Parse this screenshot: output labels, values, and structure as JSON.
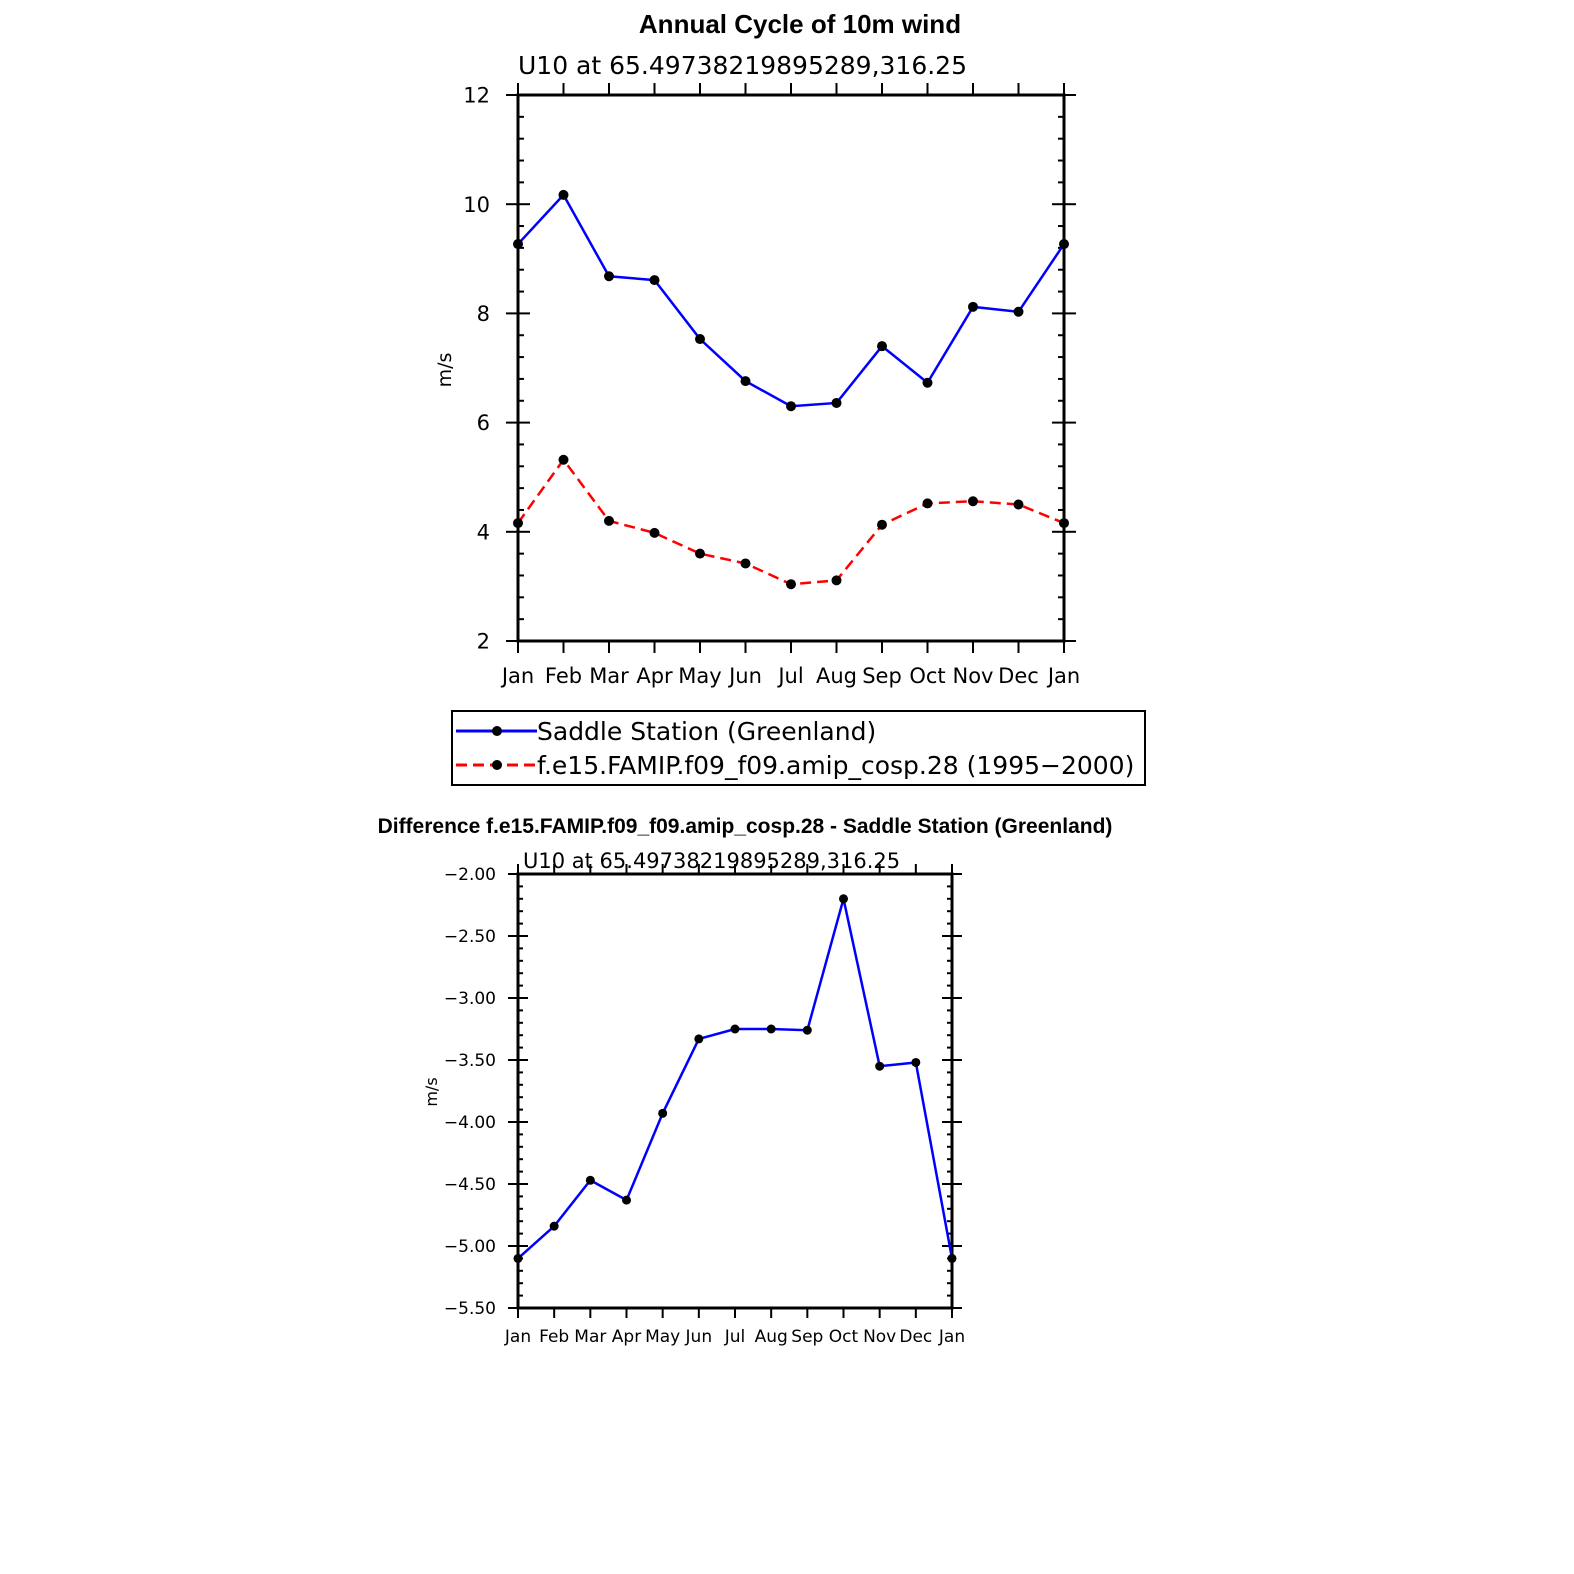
{
  "chart_data": [
    {
      "type": "line",
      "title": "Annual Cycle of 10m wind",
      "subtitle": "U10 at 65.49738219895289,316.25",
      "xlabel": "",
      "ylabel": "m/s",
      "categories": [
        "Jan",
        "Feb",
        "Mar",
        "Apr",
        "May",
        "Jun",
        "Jul",
        "Aug",
        "Sep",
        "Oct",
        "Nov",
        "Dec",
        "Jan"
      ],
      "ylim": [
        2,
        12
      ],
      "yticks": [
        "2",
        "4",
        "6",
        "8",
        "10",
        "12"
      ],
      "legend_position": "bottom",
      "series": [
        {
          "name": "Saddle Station (Greenland)",
          "color": "#0000ff",
          "dash": "solid",
          "values": [
            9.27,
            10.17,
            8.68,
            8.61,
            7.53,
            6.76,
            6.3,
            6.36,
            7.4,
            6.73,
            8.12,
            8.03,
            9.27
          ]
        },
        {
          "name": "f.e15.FAMIP.f09_f09.amip_cosp.28 (1995−2000)",
          "color": "#ff0000",
          "dash": "dashed",
          "values": [
            4.16,
            5.32,
            4.2,
            3.98,
            3.6,
            3.42,
            3.04,
            3.11,
            4.13,
            4.52,
            4.56,
            4.5,
            4.16
          ]
        }
      ]
    },
    {
      "type": "line",
      "title": "Difference f.e15.FAMIP.f09_f09.amip_cosp.28 - Saddle Station (Greenland)",
      "subtitle": "U10 at 65.49738219895289,316.25",
      "xlabel": "",
      "ylabel": "m/s",
      "categories": [
        "Jan",
        "Feb",
        "Mar",
        "Apr",
        "May",
        "Jun",
        "Jul",
        "Aug",
        "Sep",
        "Oct",
        "Nov",
        "Dec",
        "Jan"
      ],
      "ylim": [
        -5.5,
        -2.0
      ],
      "yticks": [
        "−5.50",
        "−5.00",
        "−4.50",
        "−4.00",
        "−3.50",
        "−3.00",
        "−2.50",
        "−2.00"
      ],
      "series": [
        {
          "color": "#0000ff",
          "dash": "solid",
          "values": [
            -5.1,
            -4.84,
            -4.47,
            -4.63,
            -3.93,
            -3.33,
            -3.25,
            -3.25,
            -3.26,
            -2.2,
            -3.55,
            -3.52,
            -5.1
          ]
        }
      ]
    }
  ]
}
